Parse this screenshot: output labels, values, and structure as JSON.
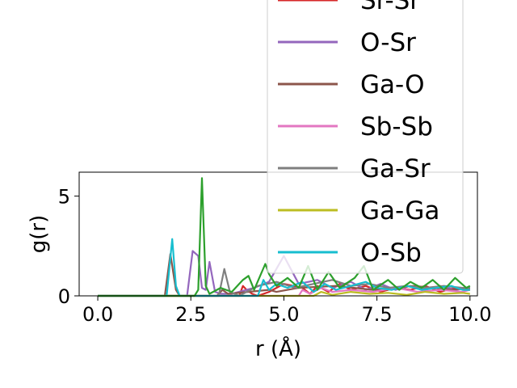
{
  "chart_data": {
    "type": "line",
    "xlabel": "r (Å)",
    "ylabel": "g(r)",
    "xlim": [
      -0.5,
      10.2
    ],
    "ylim": [
      0,
      6.2
    ],
    "xticks": [
      0.0,
      2.5,
      5.0,
      7.5,
      10.0
    ],
    "xtick_labels": [
      "0.0",
      "2.5",
      "5.0",
      "7.5",
      "10.0"
    ],
    "yticks": [
      0,
      5
    ],
    "ytick_labels": [
      "0",
      "5"
    ],
    "grid": false,
    "legend_position": "upper right",
    "series": [
      {
        "name": "Sr-Sr",
        "color": "#d62728",
        "x": [
          0,
          3.8,
          3.9,
          4.0,
          4.15,
          4.3,
          4.6,
          5.0,
          5.5,
          5.7,
          5.9,
          6.2,
          6.5,
          6.8,
          7.2,
          7.6,
          8.0,
          8.4,
          8.8,
          9.2,
          9.6,
          10.0
        ],
        "y": [
          0,
          0,
          0.5,
          0.3,
          0.1,
          0,
          0.2,
          0.6,
          0.4,
          0.1,
          0.5,
          0.2,
          0.6,
          0.3,
          0.5,
          0.2,
          0.4,
          0.3,
          0.5,
          0.2,
          0.4,
          0.3
        ]
      },
      {
        "name": "O-Sr",
        "color": "#9467bd",
        "x": [
          0,
          2.4,
          2.55,
          2.7,
          2.8,
          2.9,
          3.0,
          3.15,
          3.3,
          3.6,
          4.2,
          4.6,
          5.0,
          5.4,
          5.9,
          6.3,
          6.8,
          7.2,
          7.6,
          8.0,
          8.4,
          8.8,
          9.2,
          9.6,
          10.0
        ],
        "y": [
          0,
          0,
          2.25,
          2.0,
          0.4,
          0.3,
          1.7,
          0.2,
          0.1,
          0.1,
          0.4,
          0.7,
          2.0,
          0.6,
          0.8,
          0.4,
          0.7,
          0.3,
          0.6,
          0.3,
          0.5,
          0.3,
          0.5,
          0.3,
          0.4
        ]
      },
      {
        "name": "Ga-O",
        "color": "#8c564b",
        "x": [
          0,
          1.8,
          1.95,
          2.1,
          2.2,
          3.2,
          3.35,
          3.5,
          4.6,
          4.8,
          5.4,
          6.4,
          7.4,
          8.5,
          9.5,
          10.0
        ],
        "y": [
          0,
          0,
          2.1,
          0.3,
          0,
          0,
          0.3,
          0.1,
          0.3,
          0.2,
          0.4,
          0.5,
          0.3,
          0.5,
          0.3,
          0.4
        ]
      },
      {
        "name": "Sb-Sb",
        "color": "#e377c2",
        "x": [
          0,
          5.4,
          5.5,
          5.7,
          6.0,
          6.3,
          6.8,
          7.4,
          8.0,
          8.6,
          9.2,
          9.8,
          10.0
        ],
        "y": [
          0,
          0,
          0.3,
          0.1,
          0.4,
          0.2,
          0.3,
          0.2,
          0.4,
          0.2,
          0.3,
          0.2,
          0.3
        ]
      },
      {
        "name": "Ga-Sr",
        "color": "#7f7f7f",
        "x": [
          0,
          3.25,
          3.4,
          3.55,
          3.8,
          4.3,
          4.8,
          5.3,
          5.8,
          6.3,
          6.8,
          7.3,
          7.8,
          8.3,
          8.8,
          9.3,
          9.8,
          10.0
        ],
        "y": [
          0,
          0,
          1.35,
          0.2,
          0,
          0.5,
          0.7,
          0.4,
          0.6,
          0.8,
          0.5,
          0.6,
          0.4,
          0.5,
          0.4,
          0.5,
          0.4,
          0.4
        ]
      },
      {
        "name": "Ga-Ga",
        "color": "#bcbd22",
        "x": [
          0,
          5.8,
          6.0,
          6.3,
          6.8,
          7.3,
          7.8,
          8.3,
          8.8,
          9.3,
          9.8,
          10.0
        ],
        "y": [
          0,
          0,
          0.2,
          0.05,
          0.2,
          0.1,
          0.15,
          0.05,
          0.2,
          0.1,
          0.15,
          0.1
        ]
      },
      {
        "name": "O-Sb",
        "color": "#17becf",
        "x": [
          0,
          1.85,
          2.0,
          2.1,
          2.2,
          4.3,
          4.45,
          4.6,
          4.8,
          5.1,
          5.5,
          5.8,
          6.1,
          6.4,
          6.8,
          7.2,
          7.5,
          7.9,
          8.3,
          8.7,
          9.1,
          9.5,
          9.8,
          10.0
        ],
        "y": [
          0,
          0,
          2.85,
          0.5,
          0,
          0,
          0.8,
          0.3,
          0.6,
          0.4,
          0.7,
          0.2,
          0.6,
          0.3,
          0.5,
          0.7,
          0.4,
          0.3,
          0.5,
          0.3,
          0.4,
          0.5,
          0.3,
          0.3
        ]
      },
      {
        "name": "",
        "color": "#2ca02c",
        "x": [
          0,
          2.6,
          2.7,
          2.8,
          2.9,
          3.0,
          3.3,
          3.6,
          3.9,
          4.05,
          4.2,
          4.5,
          4.6,
          4.8,
          5.1,
          5.4,
          5.65,
          5.9,
          6.2,
          6.5,
          6.9,
          7.15,
          7.4,
          7.8,
          8.1,
          8.4,
          8.7,
          9.0,
          9.3,
          9.6,
          9.9,
          10.0
        ],
        "y": [
          0,
          0,
          0.3,
          5.9,
          0.5,
          0.1,
          0.4,
          0.2,
          0.8,
          1.0,
          0.3,
          1.6,
          1.1,
          0.5,
          0.9,
          0.4,
          1.5,
          0.3,
          1.2,
          0.4,
          0.9,
          1.5,
          0.3,
          0.8,
          0.3,
          0.7,
          0.4,
          0.8,
          0.3,
          0.9,
          0.4,
          0.5
        ]
      }
    ]
  }
}
